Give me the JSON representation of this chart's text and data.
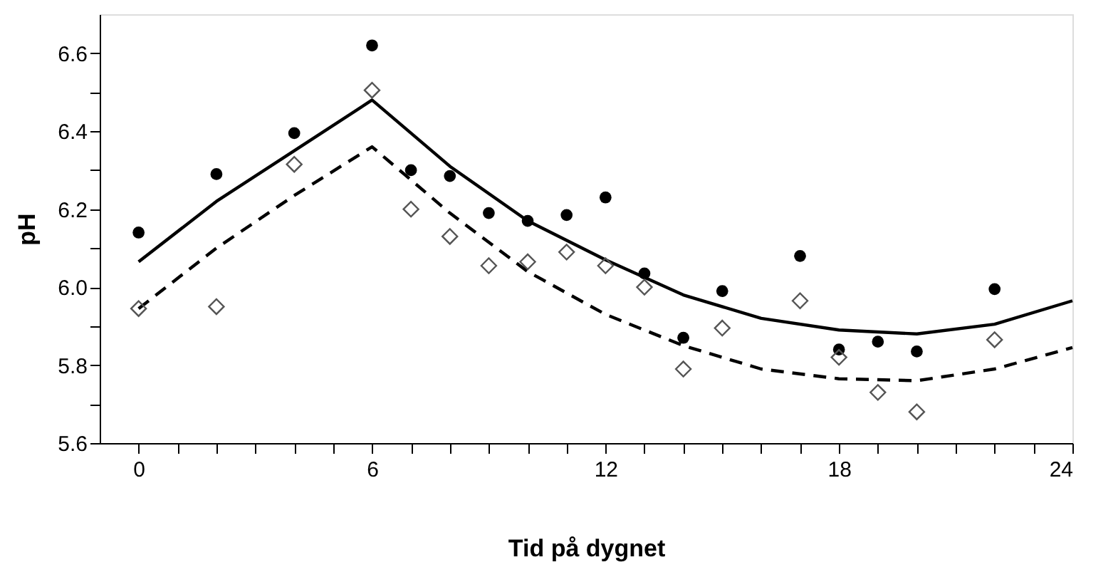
{
  "chart_data": {
    "type": "scatter",
    "xlabel": "Tid på dygnet",
    "ylabel": "pH",
    "xlim": [
      -1,
      24
    ],
    "ylim": [
      5.6,
      6.7
    ],
    "xticks": [
      0,
      {
        "value": 1,
        "label": null
      },
      {
        "value": 2,
        "label": null
      },
      {
        "value": 3,
        "label": null
      },
      {
        "value": 4,
        "label": null
      },
      {
        "value": 5,
        "label": null
      },
      6,
      {
        "value": 7,
        "label": null
      },
      {
        "value": 8,
        "label": null
      },
      {
        "value": 9,
        "label": null
      },
      {
        "value": 10,
        "label": null
      },
      {
        "value": 11,
        "label": null
      },
      12,
      {
        "value": 13,
        "label": null
      },
      {
        "value": 14,
        "label": null
      },
      {
        "value": 15,
        "label": null
      },
      {
        "value": 16,
        "label": null
      },
      {
        "value": 17,
        "label": null
      },
      18,
      {
        "value": 19,
        "label": null
      },
      {
        "value": 20,
        "label": null
      },
      {
        "value": 21,
        "label": null
      },
      {
        "value": 22,
        "label": null
      },
      {
        "value": 23,
        "label": null
      },
      24
    ],
    "yticks": [
      5.6,
      {
        "value": 5.7,
        "label": null
      },
      5.8,
      {
        "value": 5.9,
        "label": null
      },
      {
        "value": 6.0,
        "label": "6.0"
      },
      {
        "value": 6.1,
        "label": null
      },
      6.2,
      {
        "value": 6.3,
        "label": null
      },
      6.4,
      {
        "value": 6.5,
        "label": null
      },
      6.6
    ],
    "grid": false,
    "series": [
      {
        "type": "line",
        "color": "#000000",
        "line_style": "solid",
        "x": [
          0,
          2,
          4,
          6,
          8,
          10,
          12,
          14,
          16,
          18,
          20,
          22,
          24
        ],
        "values": [
          6.065,
          6.22,
          6.35,
          6.48,
          6.31,
          6.17,
          6.07,
          5.98,
          5.92,
          5.89,
          5.88,
          5.905,
          5.965
        ]
      },
      {
        "type": "line",
        "color": "#000000",
        "line_style": "dashed",
        "x": [
          0,
          2,
          4,
          6,
          8,
          10,
          12,
          14,
          16,
          18,
          20,
          22,
          24
        ],
        "values": [
          5.945,
          6.1,
          6.235,
          6.36,
          6.19,
          6.04,
          5.93,
          5.85,
          5.79,
          5.765,
          5.76,
          5.79,
          5.845
        ]
      },
      {
        "color": "#000000",
        "marker": "circle",
        "x": [
          0,
          2,
          4,
          6,
          7,
          8,
          9,
          10,
          11,
          12,
          13,
          14,
          15,
          17,
          18,
          19,
          20,
          22
        ],
        "values": [
          6.14,
          6.29,
          6.395,
          6.62,
          6.3,
          6.285,
          6.19,
          6.17,
          6.185,
          6.23,
          6.035,
          5.87,
          5.99,
          6.08,
          5.84,
          5.86,
          5.835,
          5.995
        ]
      },
      {
        "color": "#555555",
        "marker": "diamond",
        "x": [
          0,
          2,
          4,
          6,
          7,
          8,
          9,
          10,
          11,
          12,
          13,
          14,
          15,
          17,
          18,
          19,
          20,
          22
        ],
        "values": [
          5.945,
          5.95,
          6.315,
          6.505,
          6.2,
          6.13,
          6.055,
          6.065,
          6.09,
          6.055,
          6.0,
          5.79,
          5.895,
          5.965,
          5.82,
          5.73,
          5.68,
          5.865
        ]
      }
    ]
  }
}
